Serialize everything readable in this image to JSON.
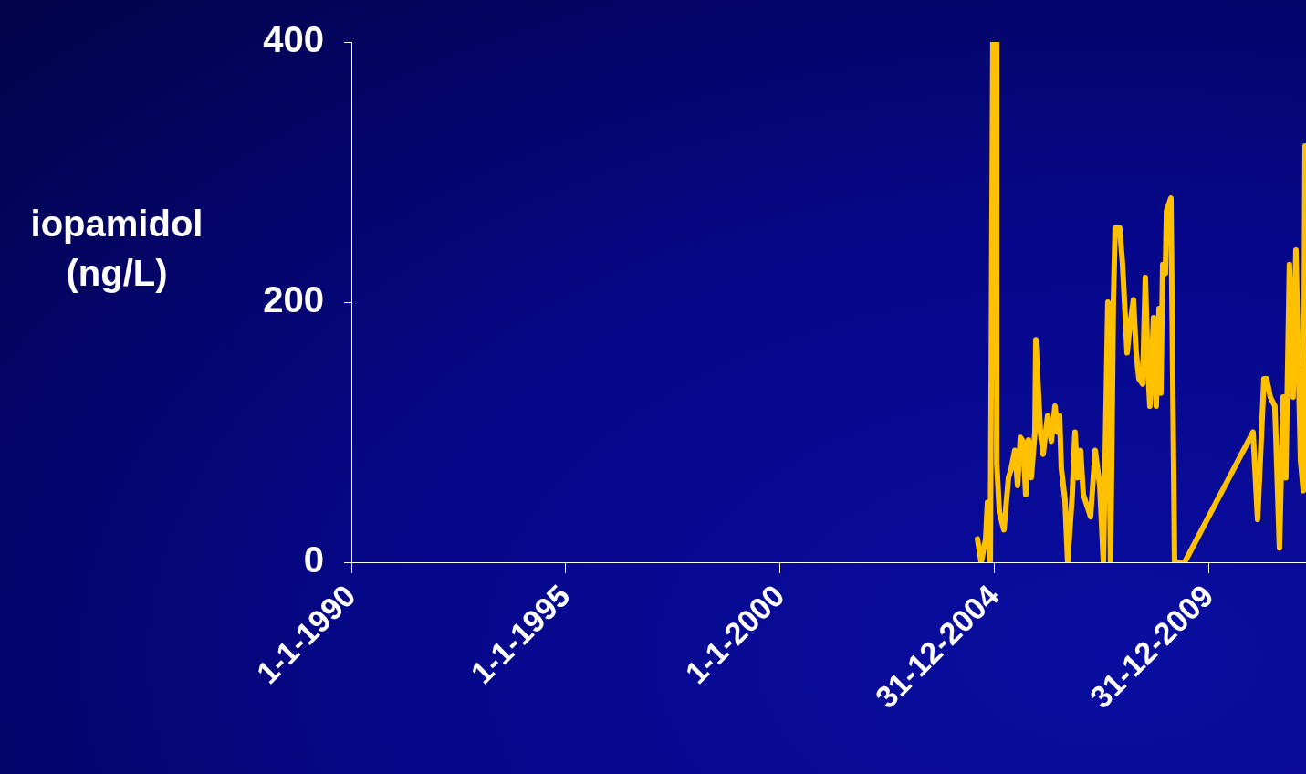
{
  "chart_data": {
    "type": "line",
    "ylabel": "iopamidol (ng/L)",
    "x": [
      "2004-08-06",
      "2004-09-06",
      "2004-10-15",
      "2004-10-30",
      "2004-11-23",
      "2004-12-15",
      "2005-01-16",
      "2005-01-17",
      "2005-02-09",
      "2005-03-19",
      "2005-04-27",
      "2005-05-20",
      "2005-06-20",
      "2005-07-14",
      "2005-08-06",
      "2005-08-29",
      "2005-09-21",
      "2005-10-15",
      "2005-11-07",
      "2005-12-08",
      "2005-12-16",
      "2006-01-24",
      "2006-02-16",
      "2006-03-27",
      "2006-04-27",
      "2006-05-28",
      "2006-06-20",
      "2006-07-06",
      "2006-07-21",
      "2006-08-21",
      "2006-09-13",
      "2006-10-22",
      "2006-11-14",
      "2006-12-07",
      "2007-01-01",
      "2007-01-24",
      "2007-03-27",
      "2007-05-05",
      "2007-06-13",
      "2007-07-14",
      "2007-08-21",
      "2007-09-13",
      "2007-10-07",
      "2007-10-22",
      "2007-11-30",
      "2007-12-24",
      "2008-02-01",
      "2008-02-24",
      "2008-03-26",
      "2008-04-18",
      "2008-05-12",
      "2008-06-12",
      "2008-07-05",
      "2008-07-28",
      "2008-08-13",
      "2008-09-13",
      "2008-10-06",
      "2008-10-30",
      "2008-11-14",
      "2008-11-30",
      "2008-12-23",
      "2009-01-01",
      "2009-02-08",
      "2009-03-11",
      "2009-06-05",
      "2011-01-08",
      "2011-02-16",
      "2011-04-11",
      "2011-05-04",
      "2011-06-04",
      "2011-07-13",
      "2011-08-21",
      "2011-09-21",
      "2011-10-14",
      "2011-11-14",
      "2011-12-15",
      "2012-01-08",
      "2012-02-16",
      "2012-03-11",
      "2012-03-26"
    ],
    "series": [
      {
        "color": "#ffc000",
        "values": [
          18,
          0,
          18,
          46,
          0,
          400,
          400,
          76,
          38,
          25,
          65,
          72,
          86,
          59,
          96,
          93,
          52,
          94,
          65,
          100,
          171,
          100,
          83,
          113,
          93,
          120,
          100,
          113,
          72,
          48,
          0,
          52,
          100,
          65,
          86,
          52,
          35,
          86,
          59,
          0,
          200,
          0,
          200,
          257,
          257,
          229,
          161,
          182,
          202,
          161,
          141,
          137,
          219,
          147,
          120,
          188,
          120,
          195,
          130,
          229,
          222,
          270,
          280,
          0,
          0,
          100,
          33,
          141,
          141,
          127,
          120,
          11,
          127,
          65,
          229,
          127,
          240,
          79,
          55,
          320
        ]
      }
    ],
    "xlim": [
      "1990-01-01",
      "2012-04-03"
    ],
    "xticks": [
      {
        "value": "1990-01-01",
        "label": "1-1-1990"
      },
      {
        "value": "1995-01-01",
        "label": "1-1-1995"
      },
      {
        "value": "2000-01-01",
        "label": "1-1-2000"
      },
      {
        "value": "2004-12-31",
        "label": "31-12-2004"
      },
      {
        "value": "2009-12-31",
        "label": "31-12-2009"
      }
    ],
    "ylim": [
      0,
      400
    ],
    "yticks": [
      0,
      200,
      400
    ],
    "grid": false,
    "legend": false,
    "marker": "none",
    "line_style": "solid"
  }
}
